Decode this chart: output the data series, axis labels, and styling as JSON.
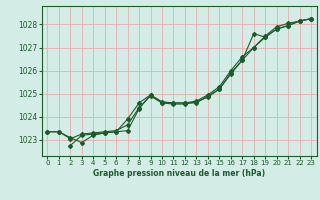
{
  "title": "Graphe pression niveau de la mer (hPa)",
  "bg_color": "#d4ece6",
  "grid_color": "#e8b4b4",
  "line_color": "#1a5c2a",
  "xlim": [
    -0.5,
    23.5
  ],
  "ylim": [
    1022.3,
    1028.8
  ],
  "yticks": [
    1023,
    1024,
    1025,
    1026,
    1027,
    1028
  ],
  "xticks": [
    0,
    1,
    2,
    3,
    4,
    5,
    6,
    7,
    8,
    9,
    10,
    11,
    12,
    13,
    14,
    15,
    16,
    17,
    18,
    19,
    20,
    21,
    22,
    23
  ],
  "line1_x": [
    0,
    1,
    2,
    3,
    4,
    5,
    6,
    7,
    8,
    9,
    10,
    11,
    12,
    13,
    14,
    15,
    16,
    17,
    18,
    19,
    20,
    21,
    22,
    23
  ],
  "line1_y": [
    1023.35,
    1023.35,
    1023.1,
    1022.88,
    1023.2,
    1023.3,
    1023.35,
    1023.9,
    1024.6,
    1024.95,
    1024.65,
    1024.6,
    1024.6,
    1024.68,
    1024.95,
    1025.3,
    1026.0,
    1026.6,
    1027.0,
    1027.5,
    1027.9,
    1028.05,
    1028.15,
    1028.25
  ],
  "line2_x": [
    0,
    1,
    2,
    3,
    4,
    5,
    6,
    7,
    8,
    9,
    10,
    11,
    12,
    13,
    14,
    15,
    16,
    17,
    18,
    19,
    20,
    21,
    22,
    23
  ],
  "line2_y": [
    1023.35,
    1023.35,
    1023.05,
    1023.25,
    1023.3,
    1023.35,
    1023.4,
    1023.65,
    1024.4,
    1024.9,
    1024.6,
    1024.55,
    1024.55,
    1024.65,
    1024.85,
    1025.2,
    1025.9,
    1026.45,
    1027.6,
    1027.45,
    1027.8,
    1027.95,
    1028.15,
    1028.25
  ],
  "line3_x": [
    2,
    3,
    4,
    5,
    6,
    7,
    8,
    9,
    10,
    11,
    12,
    13,
    14,
    15,
    16,
    17,
    18,
    19,
    20,
    21,
    22,
    23
  ],
  "line3_y": [
    1022.75,
    1023.2,
    1023.25,
    1023.3,
    1023.35,
    1023.4,
    1024.35,
    1024.95,
    1024.6,
    1024.6,
    1024.6,
    1024.6,
    1024.9,
    1025.2,
    1025.85,
    1026.45,
    1027.0,
    1027.45,
    1027.8,
    1027.95,
    1028.15,
    1028.25
  ]
}
